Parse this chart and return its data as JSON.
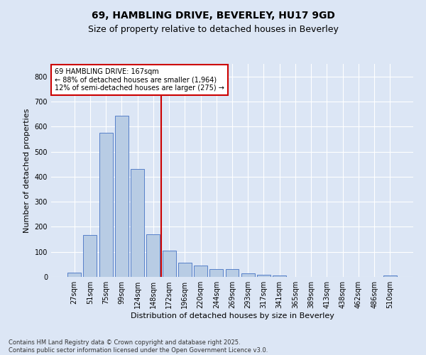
{
  "title_line1": "69, HAMBLING DRIVE, BEVERLEY, HU17 9GD",
  "title_line2": "Size of property relative to detached houses in Beverley",
  "xlabel": "Distribution of detached houses by size in Beverley",
  "ylabel": "Number of detached properties",
  "footer_line1": "Contains HM Land Registry data © Crown copyright and database right 2025.",
  "footer_line2": "Contains public sector information licensed under the Open Government Licence v3.0.",
  "categories": [
    "27sqm",
    "51sqm",
    "75sqm",
    "99sqm",
    "124sqm",
    "148sqm",
    "172sqm",
    "196sqm",
    "220sqm",
    "244sqm",
    "269sqm",
    "293sqm",
    "317sqm",
    "341sqm",
    "365sqm",
    "389sqm",
    "413sqm",
    "438sqm",
    "462sqm",
    "486sqm",
    "510sqm"
  ],
  "values": [
    18,
    168,
    575,
    642,
    432,
    170,
    105,
    58,
    44,
    32,
    32,
    14,
    9,
    6,
    0,
    0,
    0,
    0,
    0,
    0,
    7
  ],
  "bar_color": "#b8cce4",
  "bar_edge_color": "#4472c4",
  "annotation_text": "69 HAMBLING DRIVE: 167sqm\n← 88% of detached houses are smaller (1,964)\n12% of semi-detached houses are larger (275) →",
  "annotation_box_color": "#ffffff",
  "annotation_box_edge_color": "#cc0000",
  "vline_x_index": 6,
  "vline_color": "#cc0000",
  "ylim": [
    0,
    850
  ],
  "yticks": [
    0,
    100,
    200,
    300,
    400,
    500,
    600,
    700,
    800
  ],
  "bg_color": "#dce6f5",
  "plot_bg_color": "#dce6f5",
  "grid_color": "#ffffff",
  "title_fontsize": 10,
  "subtitle_fontsize": 9,
  "axis_fontsize": 8,
  "tick_fontsize": 7,
  "footer_fontsize": 6,
  "annotation_fontsize": 7
}
